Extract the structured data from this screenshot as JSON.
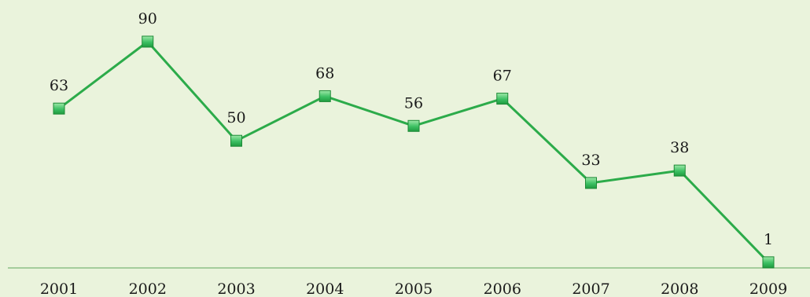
{
  "chart_data": {
    "type": "line",
    "categories": [
      "2001",
      "2002",
      "2003",
      "2004",
      "2005",
      "2006",
      "2007",
      "2008",
      "2009"
    ],
    "series": [
      {
        "values": [
          63,
          90,
          50,
          68,
          56,
          67,
          33,
          38,
          1
        ]
      }
    ],
    "data_labels": [
      "63",
      "90",
      "50",
      "68",
      "56",
      "67",
      "33",
      "38",
      "1"
    ],
    "title": "",
    "xlabel": "",
    "ylabel": "",
    "ylim": [
      0,
      90
    ],
    "grid": false,
    "legend": "none",
    "colors": {
      "background": "#eaf3dc",
      "line": "#2cab4a",
      "marker": "#3cc063",
      "marker_edge": "#1d8a36",
      "axis": "#8cbf86"
    }
  }
}
